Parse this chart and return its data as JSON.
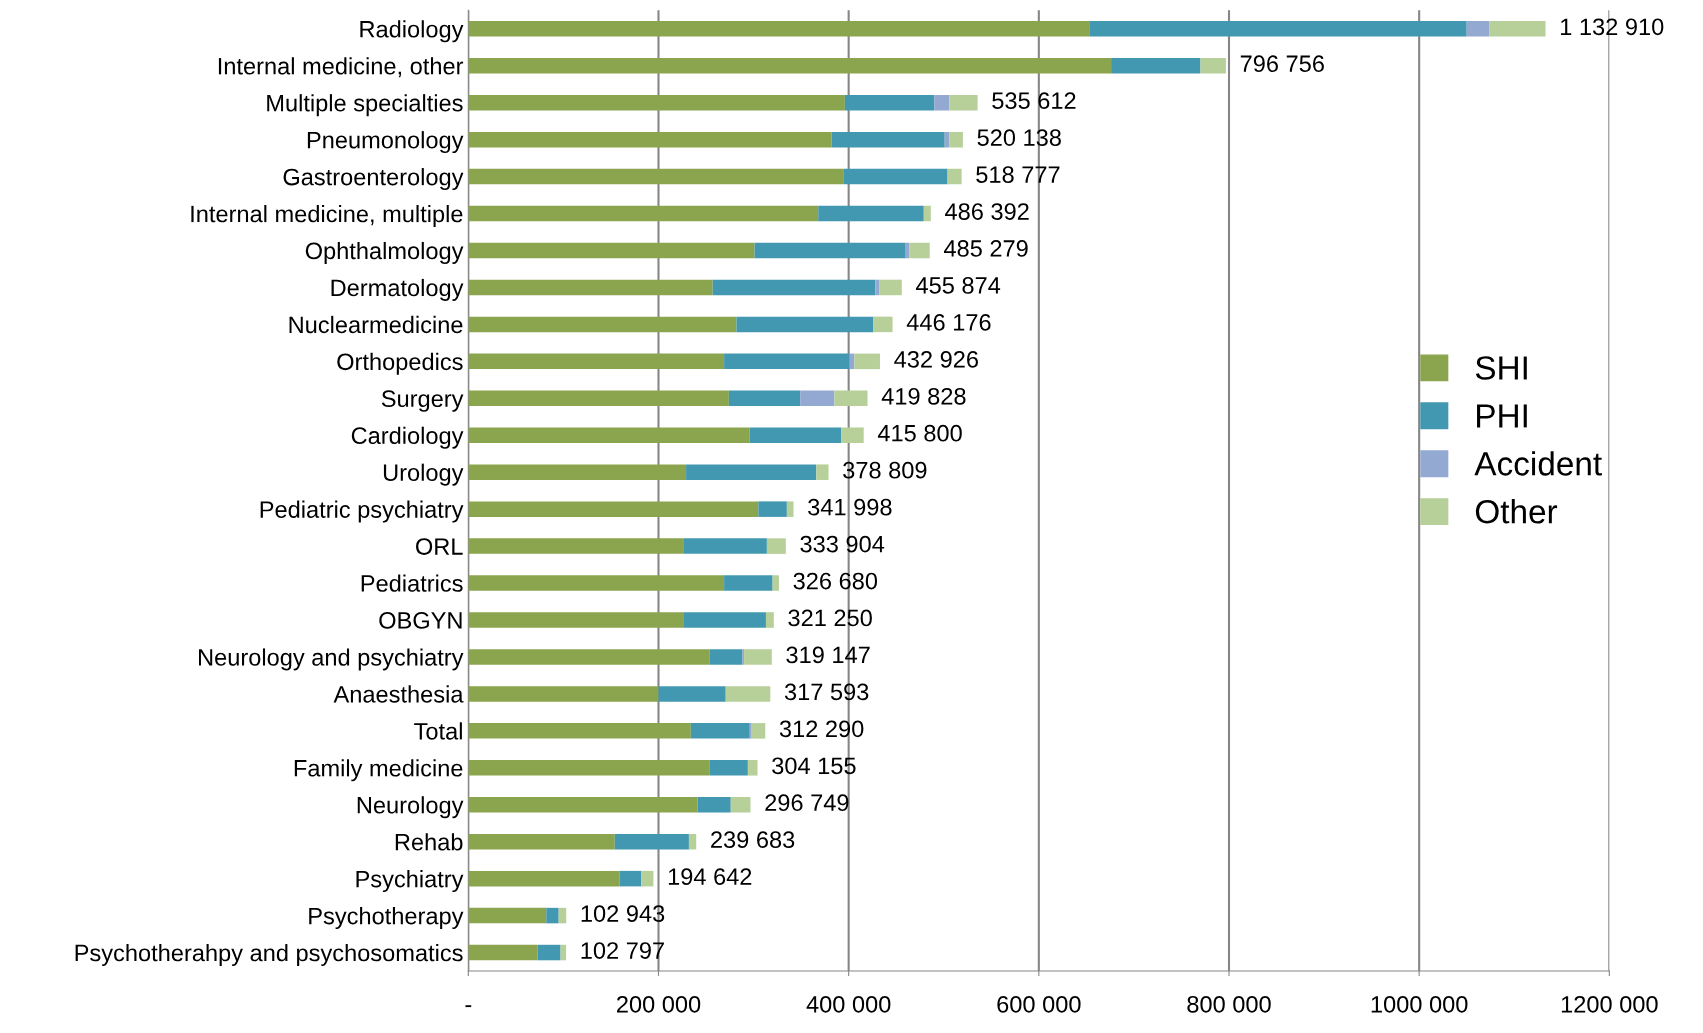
{
  "chart_data": {
    "type": "bar",
    "orientation": "horizontal",
    "stacked": true,
    "categories": [
      "Radiology",
      "Internal medicine, other",
      "Multiple specialties",
      "Pneumonology",
      "Gastroenterology",
      "Internal medicine, multiple",
      "Ophthalmology",
      "Dermatology",
      "Nuclearmedicine",
      "Orthopedics",
      "Surgery",
      "Cardiology",
      "Urology",
      "Pediatric psychiatry",
      "ORL",
      "Pediatrics",
      "OBGYN",
      "Neurology and psychiatry",
      "Anaesthesia",
      "Total",
      "Family medicine",
      "Neurology",
      "Rehab",
      "Psychiatry",
      "Psychotherapy",
      "Psychotherahpy and psychosomatics"
    ],
    "series": [
      {
        "name": "SHI",
        "color": "#8ba54e",
        "values": [
          653000,
          676000,
          396000,
          382000,
          395000,
          368000,
          301000,
          257000,
          282000,
          269000,
          274000,
          296000,
          229000,
          305000,
          226000,
          269000,
          226000,
          254000,
          200000,
          234000,
          254000,
          241000,
          154000,
          159000,
          82000,
          73000
        ]
      },
      {
        "name": "PHI",
        "color": "#4298b0",
        "values": [
          397000,
          94000,
          94000,
          119000,
          109000,
          111000,
          159000,
          171000,
          144000,
          132000,
          75000,
          96000,
          137000,
          30000,
          88000,
          51000,
          87000,
          34000,
          70000,
          62000,
          40000,
          35000,
          78000,
          23000,
          13000,
          24000
        ]
      },
      {
        "name": "Accident",
        "color": "#93a9d2",
        "values": [
          24000,
          0,
          16000,
          5000,
          0,
          0,
          4000,
          4000,
          0,
          5000,
          36000,
          0,
          0,
          0,
          0,
          0,
          0,
          2000,
          1000,
          2000,
          0,
          0,
          0,
          0,
          0,
          0
        ]
      },
      {
        "name": "Other",
        "color": "#b7cf98",
        "values": [
          58910,
          26756,
          29612,
          14138,
          14777,
          7392,
          21279,
          23874,
          20176,
          26926,
          34828,
          23800,
          12809,
          6998,
          19904,
          6680,
          8250,
          29147,
          46593,
          14290,
          10155,
          20749,
          7683,
          12642,
          7943,
          5797
        ]
      }
    ],
    "totals": [
      "1 132 910",
      "796 756",
      "535 612",
      "520 138",
      "518 777",
      "486 392",
      "485 279",
      "455 874",
      "446 176",
      "432 926",
      "419 828",
      "415 800",
      "378 809",
      "341 998",
      "333 904",
      "326 680",
      "321 250",
      "319 147",
      "317 593",
      "312 290",
      "304 155",
      "296 749",
      "239 683",
      "194 642",
      "102 943",
      "102 797"
    ],
    "xlim": [
      0,
      1200000
    ],
    "xticks": [
      {
        "value": 0,
        "label": "-"
      },
      {
        "value": 200000,
        "label": "200 000"
      },
      {
        "value": 400000,
        "label": "400 000"
      },
      {
        "value": 600000,
        "label": "600 000"
      },
      {
        "value": 800000,
        "label": "800 000"
      },
      {
        "value": 1000000,
        "label": "1000 000"
      },
      {
        "value": 1200000,
        "label": "1200 000"
      }
    ],
    "grid": "x",
    "legend": "right"
  }
}
